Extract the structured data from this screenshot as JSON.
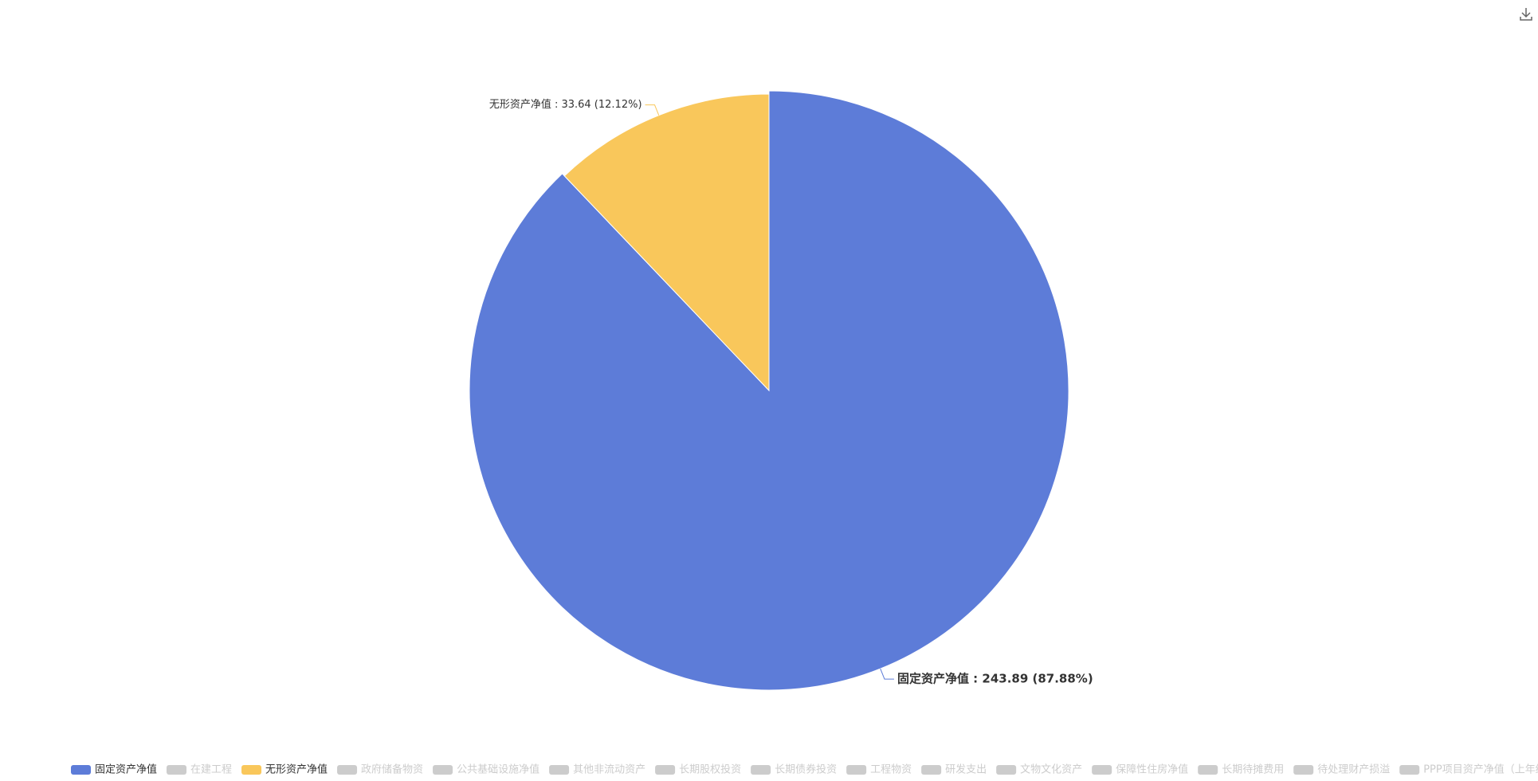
{
  "chart_data": {
    "type": "pie",
    "categories": [
      "固定资产净值",
      "无形资产净值"
    ],
    "values": [
      243.89,
      33.64
    ],
    "labels": [
      "固定资产净值 : 243.89 (87.88%)",
      "无形资产净值 : 33.64 (12.12%)"
    ],
    "colors": [
      "#5d7cd8",
      "#f9c75b"
    ],
    "legend": {
      "position": "bottom-left",
      "items": [
        "固定资产净值",
        "在建工程",
        "无形资产净值",
        "政府储备物资",
        "公共基础设施净值",
        "其他非流动资产",
        "长期股权投资",
        "长期债券投资",
        "工程物资",
        "研发支出",
        "文物文化资产",
        "保障性住房净值",
        "长期待摊费用",
        "待处理财产损溢",
        "PPP项目资产净值（上年结转）"
      ],
      "selected": [
        true,
        false,
        true,
        false,
        false,
        false,
        false,
        false,
        false,
        false,
        false,
        false,
        false,
        false,
        false
      ],
      "inactive_color": "#cccccc"
    }
  }
}
